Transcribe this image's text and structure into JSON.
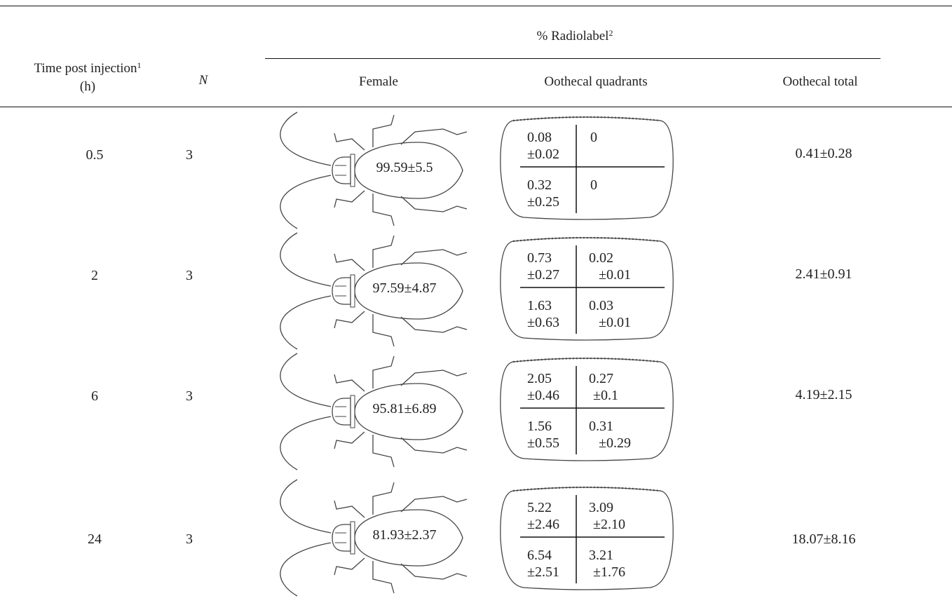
{
  "header": {
    "radiolabel": "% Radiolabel",
    "radiolabel_sup": "2",
    "time_line1": "Time post injection",
    "time_sup": "1",
    "time_line2": "(h)",
    "n": "N",
    "female": "Female",
    "quadrants": "Oothecal quadrants",
    "total": "Oothecal total"
  },
  "rows": [
    {
      "time": "0.5",
      "n": "3",
      "female": "99.59±5.5",
      "q_tl_a": "0.08",
      "q_tl_b": "±0.02",
      "q_tr_a": "0",
      "q_tr_b": "",
      "q_bl_a": "0.32",
      "q_bl_b": "±0.25",
      "q_br_a": "0",
      "q_br_b": "",
      "total": "0.41±0.28"
    },
    {
      "time": "2",
      "n": "3",
      "female": "97.59±4.87",
      "q_tl_a": "0.73",
      "q_tl_b": "±0.27",
      "q_tr_a": "0.02",
      "q_tr_b": "±0.01",
      "q_bl_a": "1.63",
      "q_bl_b": "±0.63",
      "q_br_a": "0.03",
      "q_br_b": "±0.01",
      "total": "2.41±0.91"
    },
    {
      "time": "6",
      "n": "3",
      "female": "95.81±6.89",
      "q_tl_a": "2.05",
      "q_tl_b": "±0.46",
      "q_tr_a": "0.27",
      "q_tr_b": "±0.1",
      "q_bl_a": "1.56",
      "q_bl_b": "±0.55",
      "q_br_a": "0.31",
      "q_br_b": "±0.29",
      "total": "4.19±2.15"
    },
    {
      "time": "24",
      "n": "3",
      "female": "81.93±2.37",
      "q_tl_a": "5.22",
      "q_tl_b": "±2.46",
      "q_tr_a": "3.09",
      "q_tr_b": "±2.10",
      "q_bl_a": "6.54",
      "q_bl_b": "±2.51",
      "q_br_a": "3.21",
      "q_br_b": "±1.76",
      "total": "18.07±8.16"
    }
  ]
}
